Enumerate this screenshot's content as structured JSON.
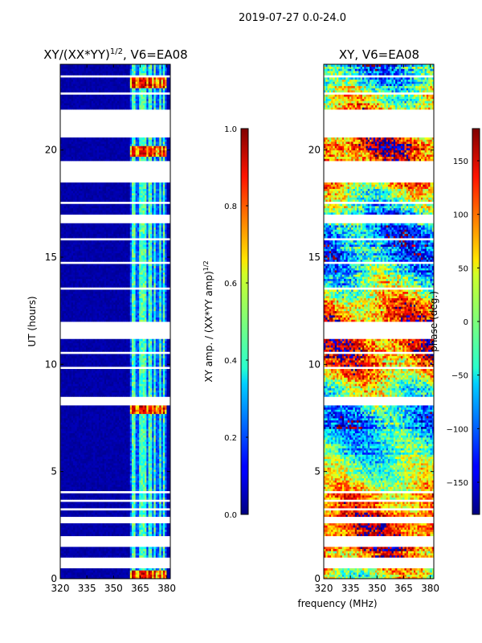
{
  "suptitle": "2019-07-27 0.0-24.0",
  "xlabel": "frequency (MHz)",
  "chart_data": [
    {
      "type": "heatmap",
      "title": "XY/(XX*YY)",
      "title_exponent": "1/2",
      "title_suffix": ", V6=EA08",
      "xlabel": "frequency (MHz)",
      "ylabel": "UT (hours)",
      "xlim": [
        320,
        382
      ],
      "ylim": [
        0,
        24
      ],
      "xticks": [
        "320",
        "335",
        "350",
        "365",
        "380"
      ],
      "yticks": [
        "0",
        "5",
        "10",
        "15",
        "20"
      ],
      "colormap": "jet",
      "colorbar": {
        "label": "XY amp. / (XX*YY amp)",
        "label_exponent": "1/2",
        "range": [
          0.0,
          1.0
        ],
        "ticks": [
          "0.0",
          "0.2",
          "0.4",
          "0.6",
          "0.8",
          "1.0"
        ]
      },
      "description_values": {
        "background_value": 0.02,
        "bright_channels_MHz": [
          360.5,
          361.5,
          365.5,
          367.5,
          370.5,
          373.5,
          376.5,
          378.5
        ],
        "hot_times_hours": [
          23.2,
          20.0,
          7.9,
          0.2
        ]
      }
    },
    {
      "type": "heatmap",
      "title": "XY, V6=EA08",
      "xlabel": "frequency (MHz)",
      "ylabel": "",
      "xlim": [
        320,
        382
      ],
      "ylim": [
        0,
        24
      ],
      "xticks": [
        "320",
        "335",
        "350",
        "365",
        "380"
      ],
      "yticks": [
        "0",
        "5",
        "10",
        "15",
        "20"
      ],
      "colormap": "jet",
      "colorbar": {
        "label": "phase (deg.)",
        "range": [
          -180,
          180
        ],
        "ticks": [
          "−150",
          "−100",
          "−50",
          "0",
          "50",
          "100",
          "150"
        ]
      }
    }
  ],
  "time_gaps_hours": [
    [
      0.5,
      1.0
    ],
    [
      1.5,
      2.0
    ],
    [
      2.6,
      2.9
    ],
    [
      3.2,
      3.3
    ],
    [
      3.6,
      3.7
    ],
    [
      4.0,
      4.1
    ],
    [
      8.1,
      8.5
    ],
    [
      9.8,
      9.9
    ],
    [
      10.5,
      10.6
    ],
    [
      11.2,
      12.0
    ],
    [
      13.5,
      13.6
    ],
    [
      14.7,
      14.8
    ],
    [
      15.8,
      15.9
    ],
    [
      16.6,
      17.0
    ],
    [
      17.5,
      17.6
    ],
    [
      18.5,
      19.5
    ],
    [
      20.6,
      21.9
    ],
    [
      22.6,
      22.7
    ],
    [
      23.4,
      23.5
    ]
  ]
}
